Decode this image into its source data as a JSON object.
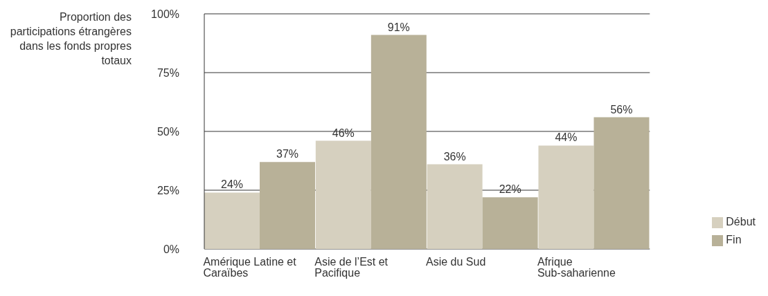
{
  "chart_data": {
    "type": "bar",
    "ylabel": "Proportion des participations étrangères dans les fonds propres totaux",
    "categories": [
      "Amérique Latine et Caraïbes",
      "Asie de l’Est et Pacifique",
      "Asie du Sud",
      "Afrique Sub-saharienne"
    ],
    "series": [
      {
        "name": "Début",
        "color": "#d6d0bf",
        "values": [
          24,
          46,
          36,
          44
        ],
        "value_labels": [
          "24%",
          "46%",
          "36%",
          "44%"
        ]
      },
      {
        "name": "Fin",
        "color": "#b8b198",
        "values": [
          37,
          91,
          22,
          56
        ],
        "value_labels": [
          "37%",
          "91%",
          "22%",
          "56%"
        ]
      }
    ],
    "ylim": [
      0,
      100
    ],
    "yticks": [
      {
        "value": 0,
        "label": "0%"
      },
      {
        "value": 25,
        "label": "25%"
      },
      {
        "value": 50,
        "label": "50%"
      },
      {
        "value": 75,
        "label": "75%"
      },
      {
        "value": 100,
        "label": "100%"
      }
    ],
    "grid": "y",
    "legend": "bottom right"
  }
}
